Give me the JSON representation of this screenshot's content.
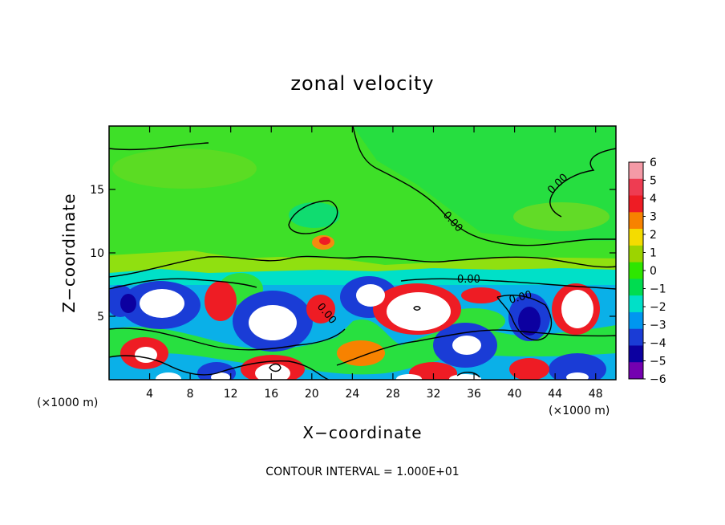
{
  "chart_data": {
    "type": "heatmap",
    "title": "zonal velocity",
    "xlabel": "X−coordinate",
    "ylabel": "Z−coordinate",
    "x_unit": "(×1000 m)",
    "y_unit": "(×1000 m)",
    "footer": "CONTOUR INTERVAL = 1.000E+01",
    "xlim": [
      0,
      50
    ],
    "ylim": [
      0,
      20
    ],
    "x_ticks": [
      "4",
      "8",
      "12",
      "16",
      "20",
      "24",
      "28",
      "32",
      "36",
      "40",
      "44",
      "48"
    ],
    "y_ticks": [
      "5",
      "10",
      "15"
    ],
    "colorbar": {
      "levels": [
        "6",
        "5",
        "4",
        "3",
        "2",
        "1",
        "0",
        "−1",
        "−2",
        "−3",
        "−4",
        "−5",
        "−6"
      ],
      "colors": [
        "#f49aa6",
        "#ee3c52",
        "#ee1c24",
        "#f78200",
        "#f4dc00",
        "#9cd400",
        "#2ee600",
        "#00dc50",
        "#00e0c8",
        "#0096f0",
        "#1a3cd6",
        "#0c00a0",
        "#7400b0"
      ]
    },
    "contour_labels": [
      "0.00",
      "0.00",
      "0.00",
      "0.00",
      "0.00"
    ]
  }
}
